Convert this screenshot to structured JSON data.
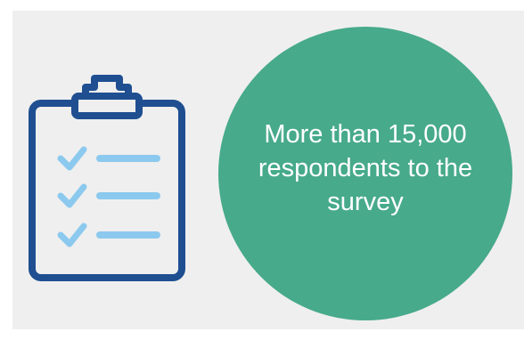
{
  "infographic": {
    "icon": "clipboard-checklist-icon",
    "stat_text": "More than 15,000 respondents to the survey",
    "colors": {
      "background": "#efefef",
      "circle": "#47aa8a",
      "clipboard_outline": "#1f4f91",
      "checklist_accent": "#8cc9ee",
      "text": "#ffffff"
    }
  }
}
